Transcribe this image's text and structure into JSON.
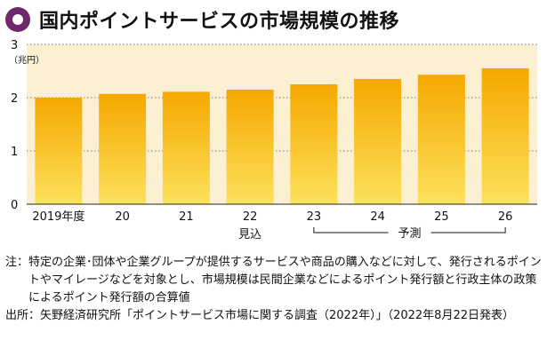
{
  "title": "国内ポイントサービスの市場規模の推移",
  "chart_data": {
    "type": "bar",
    "unit": "（兆円）",
    "categories": [
      "2019年度",
      "20",
      "21",
      "22",
      "23",
      "24",
      "25",
      "26"
    ],
    "values": [
      2.0,
      2.07,
      2.11,
      2.15,
      2.25,
      2.35,
      2.43,
      2.55
    ],
    "ylim": [
      0,
      3
    ],
    "yticks": [
      "0",
      "1",
      "2",
      "3"
    ],
    "grid": true,
    "bar_color_top": "#f5a800",
    "bar_color_bottom": "#fde15c",
    "plot_background": "#fbf1d2",
    "annotations": [
      {
        "label": "見込",
        "category_index": 3
      },
      {
        "label": "予測",
        "from_index": 4,
        "to_index": 7
      }
    ]
  },
  "notes": {
    "note_label": "注：",
    "note_text": "特定の企業･団体や企業グループが提供するサービスや商品の購入などに対して、発行されるポイントやマイレージなどを対象とし、市場規模は民間企業などによるポイント発行額と行政主体の政策によるポイント発行額の合算値",
    "source_label": "出所：",
    "source_text": "矢野経済研究所「ポイントサービス市場に関する調査（2022年）」（2022年8月22日発表）"
  }
}
